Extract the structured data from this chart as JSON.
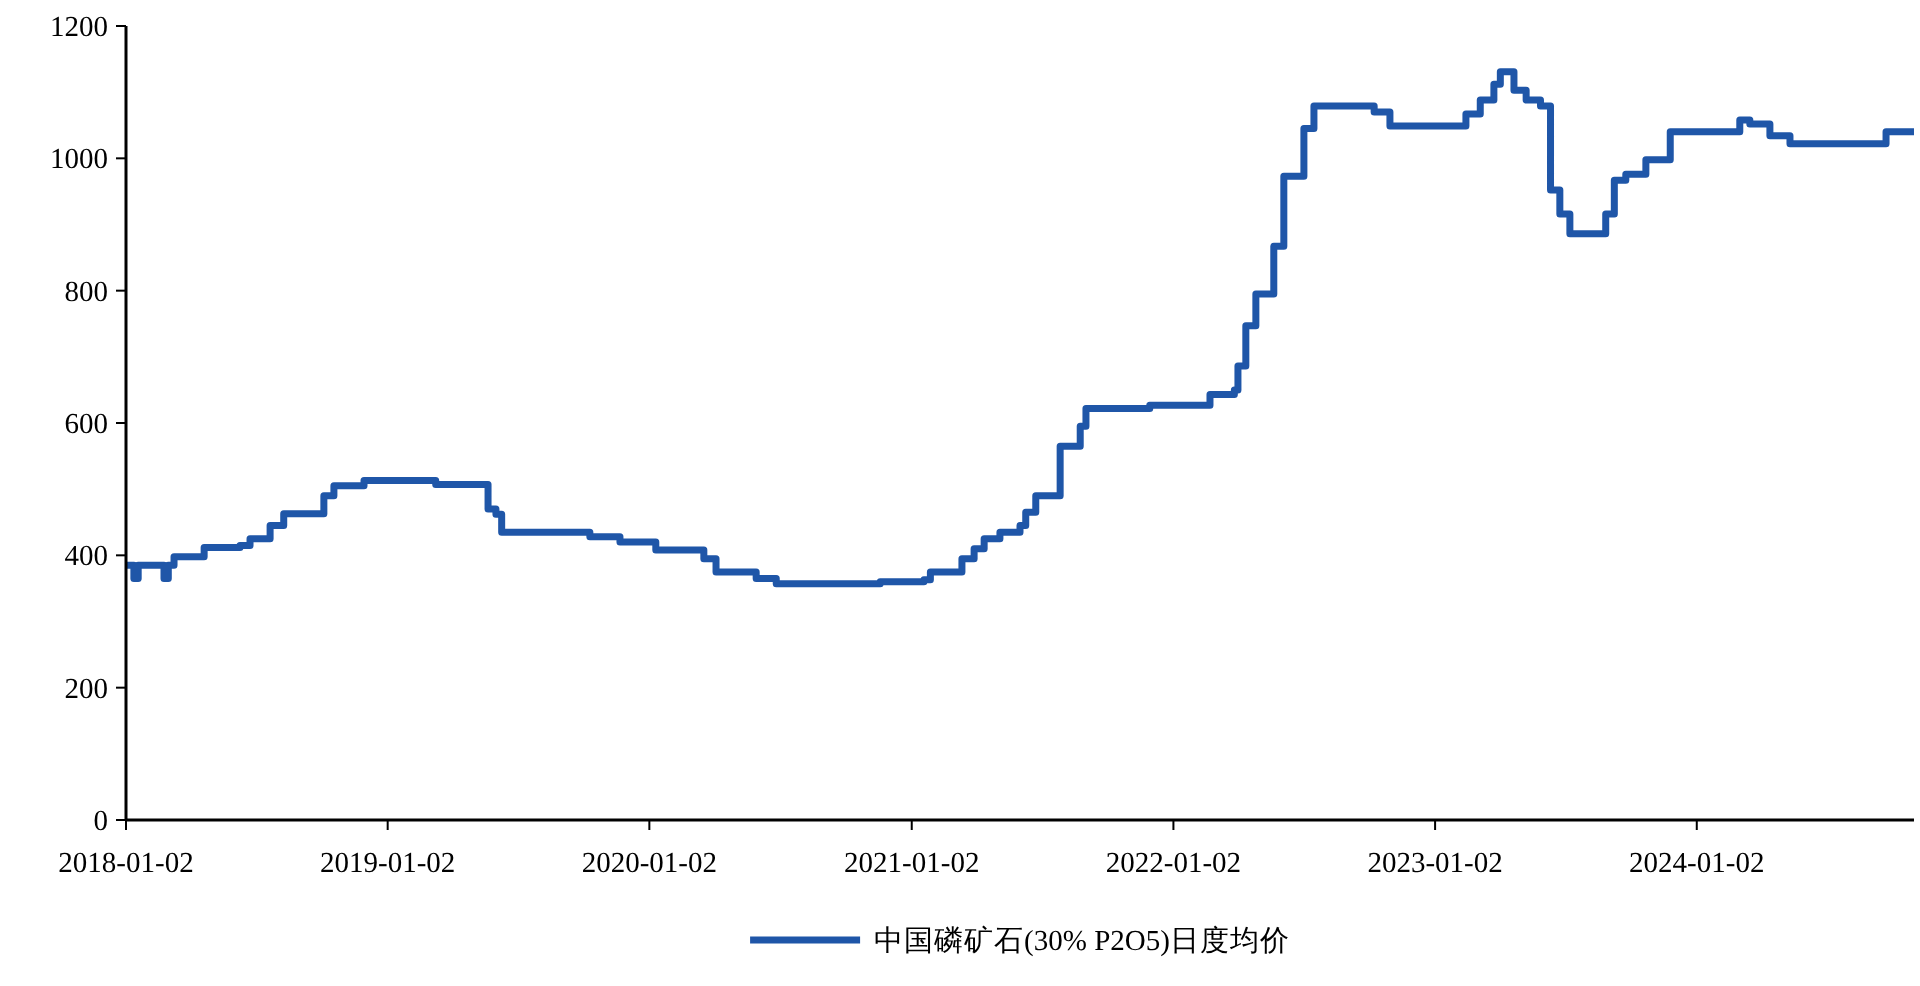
{
  "chart_data": {
    "type": "step",
    "xlim": [
      "2018-01-02",
      "2024-10-31"
    ],
    "xticks": [
      "2018-01-02",
      "2019-01-02",
      "2020-01-02",
      "2021-01-02",
      "2022-01-02",
      "2023-01-02",
      "2024-01-02"
    ],
    "ylim": [
      0,
      1200
    ],
    "yticks": [
      0,
      200,
      400,
      600,
      800,
      1000,
      1200
    ],
    "grid": false,
    "legend": "bottom",
    "marker": "none",
    "line_style": "solid",
    "series": [
      {
        "name": "中国磷矿石(30% P2O5)日度均价",
        "color": "#1f56a8",
        "x": [
          "2018-01-02",
          "2018-01-13",
          "2018-01-19",
          "2018-02-24",
          "2018-03-02",
          "2018-03-10",
          "2018-04-21",
          "2018-06-10",
          "2018-06-24",
          "2018-07-22",
          "2018-08-10",
          "2018-10-05",
          "2018-10-19",
          "2018-11-30",
          "2019-03-10",
          "2019-05-22",
          "2019-06-02",
          "2019-06-10",
          "2019-10-11",
          "2019-11-22",
          "2020-01-11",
          "2020-03-18",
          "2020-04-04",
          "2020-05-30",
          "2020-06-27",
          "2020-11-19",
          "2021-01-19",
          "2021-01-28",
          "2021-03-13",
          "2021-03-30",
          "2021-04-13",
          "2021-05-05",
          "2021-06-02",
          "2021-06-10",
          "2021-06-24",
          "2021-06-30",
          "2021-07-28",
          "2021-08-25",
          "2021-09-02",
          "2021-11-30",
          "2022-02-22",
          "2022-03-28",
          "2022-04-02",
          "2022-04-13",
          "2022-04-27",
          "2022-05-22",
          "2022-06-05",
          "2022-07-03",
          "2022-07-17",
          "2022-10-09",
          "2022-10-31",
          "2023-02-14",
          "2023-03-06",
          "2023-03-25",
          "2023-04-03",
          "2023-04-22",
          "2023-05-09",
          "2023-05-29",
          "2023-06-12",
          "2023-06-25",
          "2023-07-09",
          "2023-08-28",
          "2023-09-09",
          "2023-09-25",
          "2023-10-23",
          "2023-11-26",
          "2024-03-02",
          "2024-03-16",
          "2024-04-13",
          "2024-05-11",
          "2024-09-22",
          "2024-10-31"
        ],
        "values": [
          385,
          365,
          385,
          365,
          385,
          398,
          412,
          415,
          425,
          445,
          463,
          490,
          505,
          513,
          507,
          470,
          462,
          435,
          428,
          420,
          408,
          395,
          375,
          365,
          357,
          360,
          363,
          375,
          395,
          410,
          425,
          435,
          445,
          465,
          490,
          490,
          565,
          595,
          622,
          627,
          643,
          650,
          686,
          747,
          795,
          867,
          973,
          1045,
          1079,
          1070,
          1049,
          1067,
          1088,
          1112,
          1131,
          1103,
          1088,
          1079,
          952,
          916,
          886,
          916,
          967,
          976,
          998,
          1040,
          1058,
          1052,
          1034,
          1022,
          1040,
          1040
        ]
      }
    ]
  }
}
